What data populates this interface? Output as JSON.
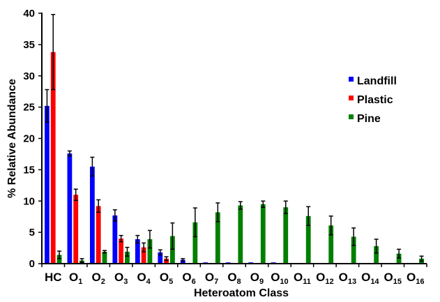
{
  "chart_data": {
    "type": "bar",
    "title": "",
    "xlabel": "Heteroatom Class",
    "ylabel": "% Relative Abundance",
    "ylim": [
      0,
      40
    ],
    "yticks": [
      0,
      5,
      10,
      15,
      20,
      25,
      30,
      35,
      40
    ],
    "grid": false,
    "legend_position": "right",
    "categories": [
      {
        "base": "HC",
        "sub": ""
      },
      {
        "base": "O",
        "sub": "1"
      },
      {
        "base": "O",
        "sub": "2"
      },
      {
        "base": "O",
        "sub": "3"
      },
      {
        "base": "O",
        "sub": "4"
      },
      {
        "base": "O",
        "sub": "5"
      },
      {
        "base": "O",
        "sub": "6"
      },
      {
        "base": "O",
        "sub": "7"
      },
      {
        "base": "O",
        "sub": "8"
      },
      {
        "base": "O",
        "sub": "9"
      },
      {
        "base": "O",
        "sub": "10"
      },
      {
        "base": "O",
        "sub": "11"
      },
      {
        "base": "O",
        "sub": "12"
      },
      {
        "base": "O",
        "sub": "13"
      },
      {
        "base": "O",
        "sub": "14"
      },
      {
        "base": "O",
        "sub": "15"
      },
      {
        "base": "O",
        "sub": "16"
      }
    ],
    "series": [
      {
        "name": "Landfill",
        "color": "#0000ff",
        "values": [
          25.2,
          17.6,
          15.5,
          7.7,
          3.9,
          1.8,
          0.6,
          0.2,
          0.2,
          0.2,
          0.2,
          0,
          0,
          0,
          0,
          0,
          0
        ],
        "errors": [
          2.6,
          0.4,
          1.5,
          0.9,
          0.6,
          0.4,
          0.2,
          0,
          0,
          0,
          0,
          0,
          0,
          0,
          0,
          0,
          0
        ]
      },
      {
        "name": "Plastic",
        "color": "#ff0000",
        "values": [
          33.8,
          11.0,
          9.2,
          4.0,
          2.6,
          0.8,
          0,
          0,
          0,
          0,
          0,
          0,
          0,
          0,
          0,
          0,
          0
        ],
        "errors": [
          6.0,
          0.9,
          1.0,
          0.5,
          0.7,
          0.3,
          0,
          0,
          0,
          0,
          0,
          0,
          0,
          0,
          0,
          0,
          0
        ]
      },
      {
        "name": "Pine",
        "color": "#008000",
        "values": [
          1.4,
          0.5,
          1.9,
          1.9,
          3.9,
          4.4,
          6.6,
          8.2,
          9.3,
          9.5,
          9.0,
          7.6,
          6.1,
          4.3,
          2.8,
          1.6,
          0.8
        ],
        "errors": [
          0.6,
          0.3,
          0.2,
          0.7,
          1.4,
          2.1,
          2.3,
          1.5,
          0.6,
          0.5,
          1.0,
          1.5,
          1.5,
          1.4,
          1.1,
          0.7,
          0.4
        ]
      }
    ]
  }
}
